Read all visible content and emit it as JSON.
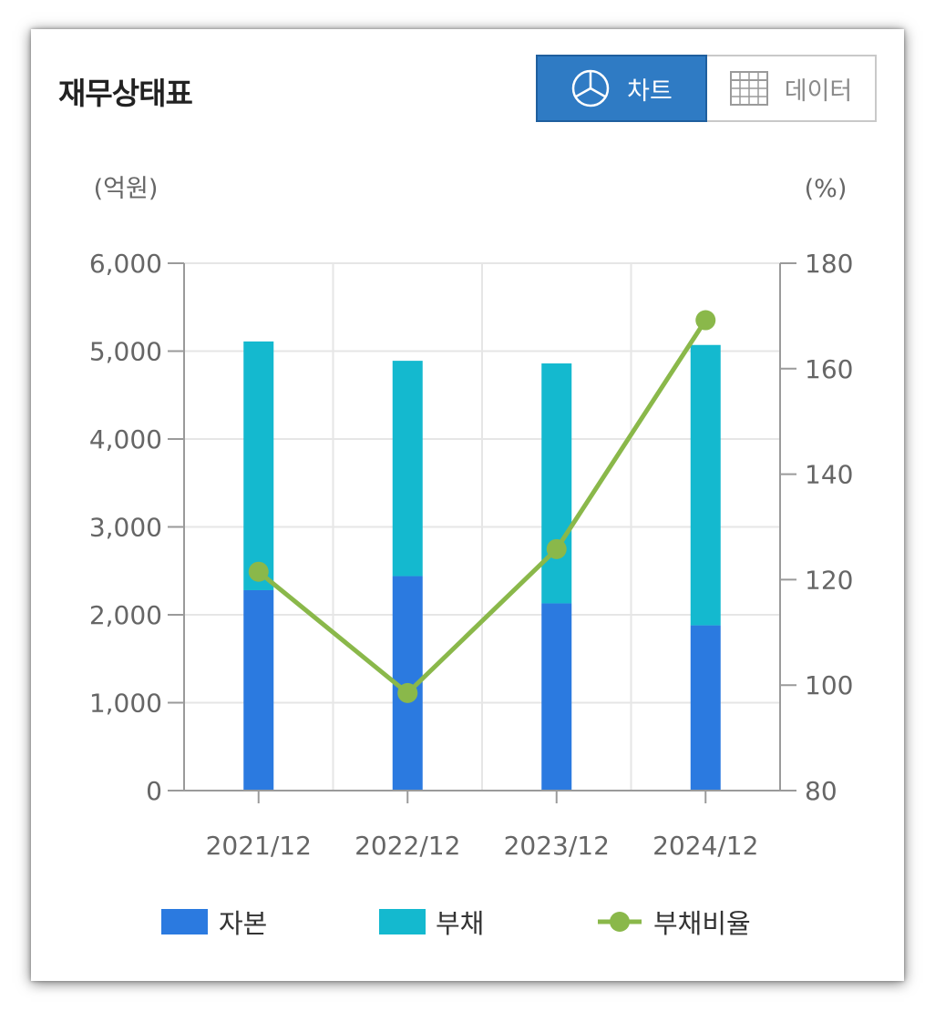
{
  "widget": {
    "title": "재무상태표",
    "toggle": {
      "chart_label": "차트",
      "data_label": "데이터",
      "chart_icon": "pie-chart-icon",
      "data_icon": "table-grid-icon",
      "active": "chart"
    }
  },
  "colors": {
    "equity": "#2b7ae0",
    "liabilities": "#14b9cf",
    "ratio": "#8ab84a",
    "toggle_active": "#2f7bc4"
  },
  "chart_data": {
    "type": "bar",
    "stacked": true,
    "categories": [
      "2021/12",
      "2022/12",
      "2023/12",
      "2024/12"
    ],
    "left_unit": "(억원)",
    "right_unit": "(%)",
    "ylim": [
      0,
      6000
    ],
    "y_ticks": [
      0,
      1000,
      2000,
      3000,
      4000,
      5000,
      6000
    ],
    "y_tick_labels": [
      "0",
      "1,000",
      "2,000",
      "3,000",
      "4,000",
      "5,000",
      "6,000"
    ],
    "y2lim": [
      80,
      180
    ],
    "y2_ticks": [
      80,
      100,
      120,
      140,
      160,
      180
    ],
    "y2_tick_labels": [
      "80",
      "100",
      "120",
      "140",
      "160",
      "180"
    ],
    "grid": true,
    "legend_position": "bottom",
    "series": [
      {
        "name": "자본",
        "type": "bar",
        "axis": "left",
        "values": [
          2280,
          2440,
          2130,
          1880
        ]
      },
      {
        "name": "부채",
        "type": "bar",
        "axis": "left",
        "values": [
          2830,
          2450,
          2730,
          3190
        ]
      },
      {
        "name": "부채비율",
        "type": "line",
        "axis": "right",
        "values": [
          121.5,
          98.5,
          125.8,
          169.2
        ]
      }
    ]
  }
}
